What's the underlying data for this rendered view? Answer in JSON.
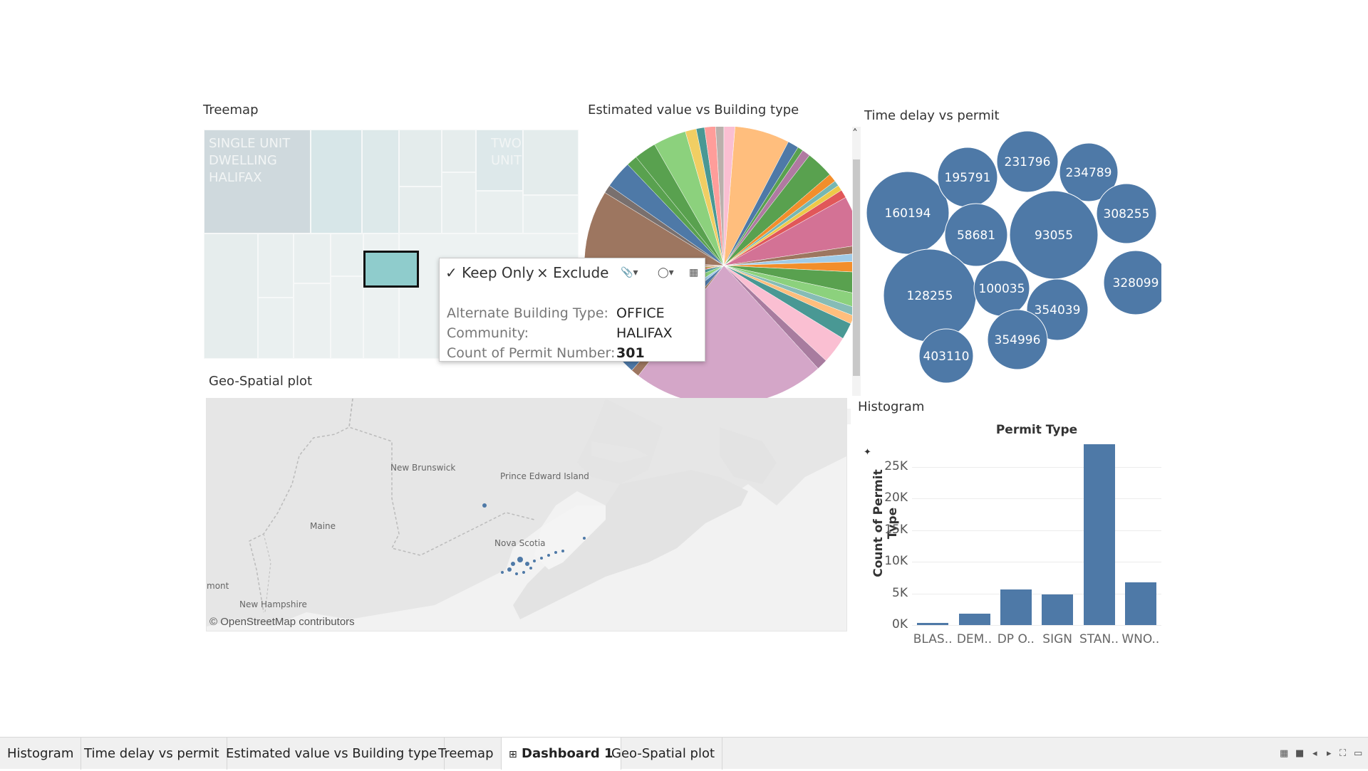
{
  "titles": {
    "treemap": "Treemap",
    "pie": "Estimated value vs Building type",
    "bubbles": "Time delay vs permit",
    "map": "Geo-Spatial plot",
    "histogram": "Histogram"
  },
  "treemap": {
    "labels": [
      "SINGLE UNIT\nDWELLING\nHALIFAX",
      "TWO\nUNIT"
    ]
  },
  "tooltip": {
    "keep_only": "Keep Only",
    "exclude": "Exclude",
    "rows": [
      {
        "label": "Alternate Building Type:",
        "value": "OFFICE"
      },
      {
        "label": "Community:",
        "value": "HALIFAX"
      },
      {
        "label": "Count of Permit Number:",
        "value": "301"
      }
    ]
  },
  "bubbles": {
    "values": [
      "160194",
      "195791",
      "231796",
      "234789",
      "58681",
      "93055",
      "308255",
      "128255",
      "100035",
      "328099",
      "354039",
      "354996",
      "403110"
    ],
    "color": "#4e79a7"
  },
  "map": {
    "labels": [
      "New\nBrunswick",
      "Prince\nEdward\nIsland",
      "Maine",
      "Nova\nScotia",
      "mont",
      "New\nHampshire"
    ],
    "attribution": "© OpenStreetMap contributors"
  },
  "chart_data": {
    "type": "bar",
    "title": "Permit Type",
    "ylabel": "Count of Permit Type",
    "xlabel": "",
    "categories": [
      "BLAS..",
      "DEM..",
      "DP O..",
      "SIGN",
      "STAN..",
      "WNO.."
    ],
    "values": [
      300,
      1800,
      5600,
      4800,
      28500,
      6700
    ],
    "yticks": [
      "0K",
      "5K",
      "10K",
      "15K",
      "20K",
      "25K"
    ],
    "ylim": [
      0,
      29000
    ],
    "color": "#4e79a7"
  },
  "tabs": [
    {
      "label": "Histogram"
    },
    {
      "label": "Time delay vs permit"
    },
    {
      "label": "Estimated value vs Building type"
    },
    {
      "label": "Treemap"
    },
    {
      "label": "Dashboard 1"
    },
    {
      "label": "Geo-Spatial plot"
    }
  ]
}
